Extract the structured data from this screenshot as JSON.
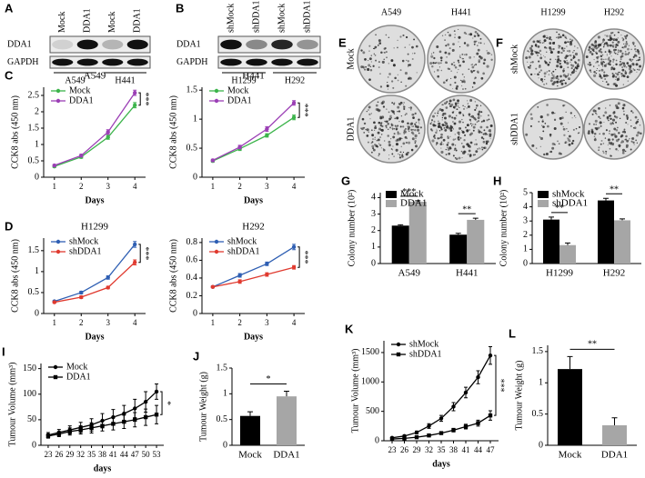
{
  "blots": [
    {
      "panel": "A",
      "lanes": [
        "Mock",
        "DDA1",
        "Mock",
        "DDA1"
      ],
      "rows": [
        "DDA1",
        "GAPDH"
      ],
      "groups": [
        "A549",
        "H441"
      ]
    },
    {
      "panel": "B",
      "lanes": [
        "shMock",
        "shDDA1",
        "shMock",
        "shDDA1"
      ],
      "rows": [
        "DDA1",
        "GAPDH"
      ],
      "groups": [
        "H1299",
        "H292"
      ]
    }
  ],
  "colony_plates": [
    {
      "panel": "E",
      "columns": [
        "A549",
        "H441"
      ],
      "rows": [
        "Mock",
        "DDA1"
      ]
    },
    {
      "panel": "F",
      "columns": [
        "H1299",
        "H292"
      ],
      "rows": [
        "shMock",
        "shDDA1"
      ]
    }
  ],
  "chart_data": [
    {
      "panel": "C",
      "type": "line",
      "title": "A549",
      "x": [
        1,
        2,
        3,
        4
      ],
      "xlim": [
        0.6,
        4.4
      ],
      "xticks": [
        1,
        2,
        3,
        4
      ],
      "ylim": [
        0,
        2.75
      ],
      "yticks": [
        0,
        0.5,
        1,
        1.5,
        2,
        2.5
      ],
      "x_label": "Days",
      "y_label": "CCK8 abs (450 nm)",
      "legend": "upper left",
      "significance": "***",
      "series": [
        {
          "name": "Mock",
          "color": "#3cb44b",
          "marker": "circle",
          "values": [
            0.33,
            0.62,
            1.22,
            2.2
          ],
          "errors": [
            0.03,
            0.04,
            0.06,
            0.08
          ]
        },
        {
          "name": "DDA1",
          "color": "#9b3fb5",
          "marker": "circle",
          "values": [
            0.36,
            0.66,
            1.38,
            2.58
          ],
          "errors": [
            0.03,
            0.04,
            0.07,
            0.08
          ]
        }
      ]
    },
    {
      "type": "line",
      "title": "H441",
      "x": [
        1,
        2,
        3,
        4
      ],
      "xlim": [
        0.6,
        4.4
      ],
      "xticks": [
        1,
        2,
        3,
        4
      ],
      "ylim": [
        0,
        1.55
      ],
      "yticks": [
        0,
        0.5,
        1,
        1.5
      ],
      "x_label": "Days",
      "y_label": "CCK8 abs (450 nm)",
      "legend": "upper left",
      "significance": "***",
      "series": [
        {
          "name": "Mock",
          "color": "#3cb44b",
          "marker": "circle",
          "values": [
            0.28,
            0.49,
            0.72,
            1.03
          ],
          "errors": [
            0.02,
            0.03,
            0.03,
            0.04
          ]
        },
        {
          "name": "DDA1",
          "color": "#9b3fb5",
          "marker": "circle",
          "values": [
            0.29,
            0.52,
            0.83,
            1.28
          ],
          "errors": [
            0.02,
            0.03,
            0.04,
            0.04
          ]
        }
      ]
    },
    {
      "panel": "D",
      "type": "line",
      "title": "H1299",
      "x": [
        1,
        2,
        3,
        4
      ],
      "xlim": [
        0.6,
        4.4
      ],
      "xticks": [
        1,
        2,
        3,
        4
      ],
      "ylim": [
        0,
        1.8
      ],
      "yticks": [
        0,
        0.5,
        1,
        1.5
      ],
      "x_label": "Days",
      "y_label": "CCK8 abs (450 nm)",
      "legend": "upper left",
      "significance": "***",
      "series": [
        {
          "name": "shMock",
          "color": "#2f5fb3",
          "marker": "circle",
          "values": [
            0.29,
            0.5,
            0.86,
            1.65
          ],
          "errors": [
            0.02,
            0.03,
            0.04,
            0.07
          ]
        },
        {
          "name": "shDDA1",
          "color": "#e03a2f",
          "marker": "circle",
          "values": [
            0.27,
            0.39,
            0.62,
            1.22
          ],
          "errors": [
            0.02,
            0.03,
            0.03,
            0.06
          ]
        }
      ]
    },
    {
      "type": "line",
      "title": "H292",
      "x": [
        1,
        2,
        3,
        4
      ],
      "xlim": [
        0.6,
        4.4
      ],
      "xticks": [
        1,
        2,
        3,
        4
      ],
      "ylim": [
        0,
        0.85
      ],
      "yticks": [
        0,
        0.2,
        0.4,
        0.6,
        0.8
      ],
      "x_label": "Days",
      "y_label": "CCK8 abs (450 nm)",
      "legend": "upper left",
      "significance": "***",
      "series": [
        {
          "name": "shMock",
          "color": "#2f5fb3",
          "marker": "circle",
          "values": [
            0.3,
            0.43,
            0.56,
            0.75
          ],
          "errors": [
            0.01,
            0.02,
            0.02,
            0.03
          ]
        },
        {
          "name": "shDDA1",
          "color": "#e03a2f",
          "marker": "circle",
          "values": [
            0.3,
            0.36,
            0.44,
            0.52
          ],
          "errors": [
            0.01,
            0.02,
            0.02,
            0.02
          ]
        }
      ]
    },
    {
      "panel": "G",
      "type": "bar",
      "categories": [
        "A549",
        "H441"
      ],
      "ylim": [
        0,
        4.3
      ],
      "yticks": [
        0,
        1,
        2,
        3,
        4
      ],
      "y_label": "Colony number (10²)",
      "legend": "upper left",
      "significance": [
        "***",
        "**"
      ],
      "series": [
        {
          "name": "Mock",
          "color": "#000000",
          "values": [
            2.3,
            1.75
          ],
          "errors": [
            0.05,
            0.08
          ]
        },
        {
          "name": "DDA1",
          "color": "#a6a6a6",
          "values": [
            3.75,
            2.65
          ],
          "errors": [
            0.06,
            0.1
          ]
        }
      ]
    },
    {
      "panel": "H",
      "type": "bar",
      "categories": [
        "H1299",
        "H292"
      ],
      "ylim": [
        0,
        5
      ],
      "yticks": [
        0,
        1,
        2,
        3,
        4,
        5
      ],
      "y_label": "Colony number (10²)",
      "legend": "upper left",
      "significance": [
        "**",
        "**"
      ],
      "series": [
        {
          "name": "shMock",
          "color": "#000000",
          "values": [
            3.1,
            4.45
          ],
          "errors": [
            0.18,
            0.15
          ]
        },
        {
          "name": "shDDA1",
          "color": "#a6a6a6",
          "values": [
            1.3,
            3.05
          ],
          "errors": [
            0.15,
            0.1
          ]
        }
      ]
    },
    {
      "panel": "I",
      "type": "line",
      "x": [
        23,
        26,
        29,
        32,
        35,
        38,
        41,
        44,
        47,
        50,
        53
      ],
      "xlim": [
        21,
        55
      ],
      "xticks": [
        23,
        26,
        29,
        32,
        35,
        38,
        41,
        44,
        47,
        50,
        53
      ],
      "ylim": [
        0,
        160
      ],
      "yticks": [
        0,
        50,
        100,
        150
      ],
      "x_label": "days",
      "y_label": "Tumour Volume (mm³)",
      "legend": "upper left",
      "significance": "*",
      "series": [
        {
          "name": "Mock",
          "color": "#000000",
          "marker": "circle",
          "values": [
            20,
            25,
            30,
            35,
            40,
            48,
            55,
            62,
            72,
            85,
            105
          ],
          "errors": [
            5,
            6,
            8,
            10,
            12,
            14,
            15,
            16,
            18,
            20,
            15
          ]
        },
        {
          "name": "DDA1",
          "color": "#000000",
          "marker": "square",
          "values": [
            18,
            22,
            27,
            30,
            34,
            38,
            42,
            46,
            50,
            55,
            60
          ],
          "errors": [
            4,
            5,
            7,
            8,
            10,
            10,
            12,
            13,
            14,
            16,
            18
          ]
        }
      ]
    },
    {
      "panel": "J",
      "type": "bar",
      "categories": [
        "Mock",
        "DDA1"
      ],
      "values": [
        0.57,
        0.95
      ],
      "errors": [
        0.08,
        0.1
      ],
      "colors": [
        "#000000",
        "#a6a6a6"
      ],
      "ylim": [
        0,
        1.5
      ],
      "yticks": [
        0,
        0.5,
        1,
        1.5
      ],
      "y_label": "Tumour Weight (g)",
      "significance": "*"
    },
    {
      "panel": "K",
      "type": "line",
      "x": [
        23,
        26,
        29,
        32,
        35,
        38,
        41,
        44,
        47
      ],
      "xlim": [
        21,
        49
      ],
      "xticks": [
        23,
        26,
        29,
        32,
        35,
        38,
        41,
        44,
        47
      ],
      "ylim": [
        0,
        1700
      ],
      "yticks": [
        0,
        500,
        1000,
        1500
      ],
      "x_label": "days",
      "y_label": "Tumour Volume (mm³)",
      "legend": "upper left",
      "significance": "***",
      "series": [
        {
          "name": "shMock",
          "color": "#000000",
          "marker": "circle",
          "values": [
            50,
            80,
            140,
            250,
            380,
            580,
            820,
            1080,
            1450
          ],
          "errors": [
            10,
            15,
            25,
            40,
            50,
            70,
            90,
            110,
            150
          ]
        },
        {
          "name": "shDDA1",
          "color": "#000000",
          "marker": "square",
          "values": [
            30,
            40,
            60,
            90,
            130,
            180,
            240,
            300,
            430
          ],
          "errors": [
            5,
            8,
            10,
            15,
            20,
            30,
            40,
            50,
            80
          ]
        }
      ]
    },
    {
      "panel": "L",
      "type": "bar",
      "categories": [
        "Mock",
        "DDA1"
      ],
      "values": [
        1.22,
        0.32
      ],
      "errors": [
        0.2,
        0.12
      ],
      "colors": [
        "#000000",
        "#a6a6a6"
      ],
      "ylim": [
        0,
        1.6
      ],
      "yticks": [
        0,
        0.5,
        1,
        1.5
      ],
      "y_label": "Tumour Weight (g)",
      "significance": "**"
    }
  ]
}
